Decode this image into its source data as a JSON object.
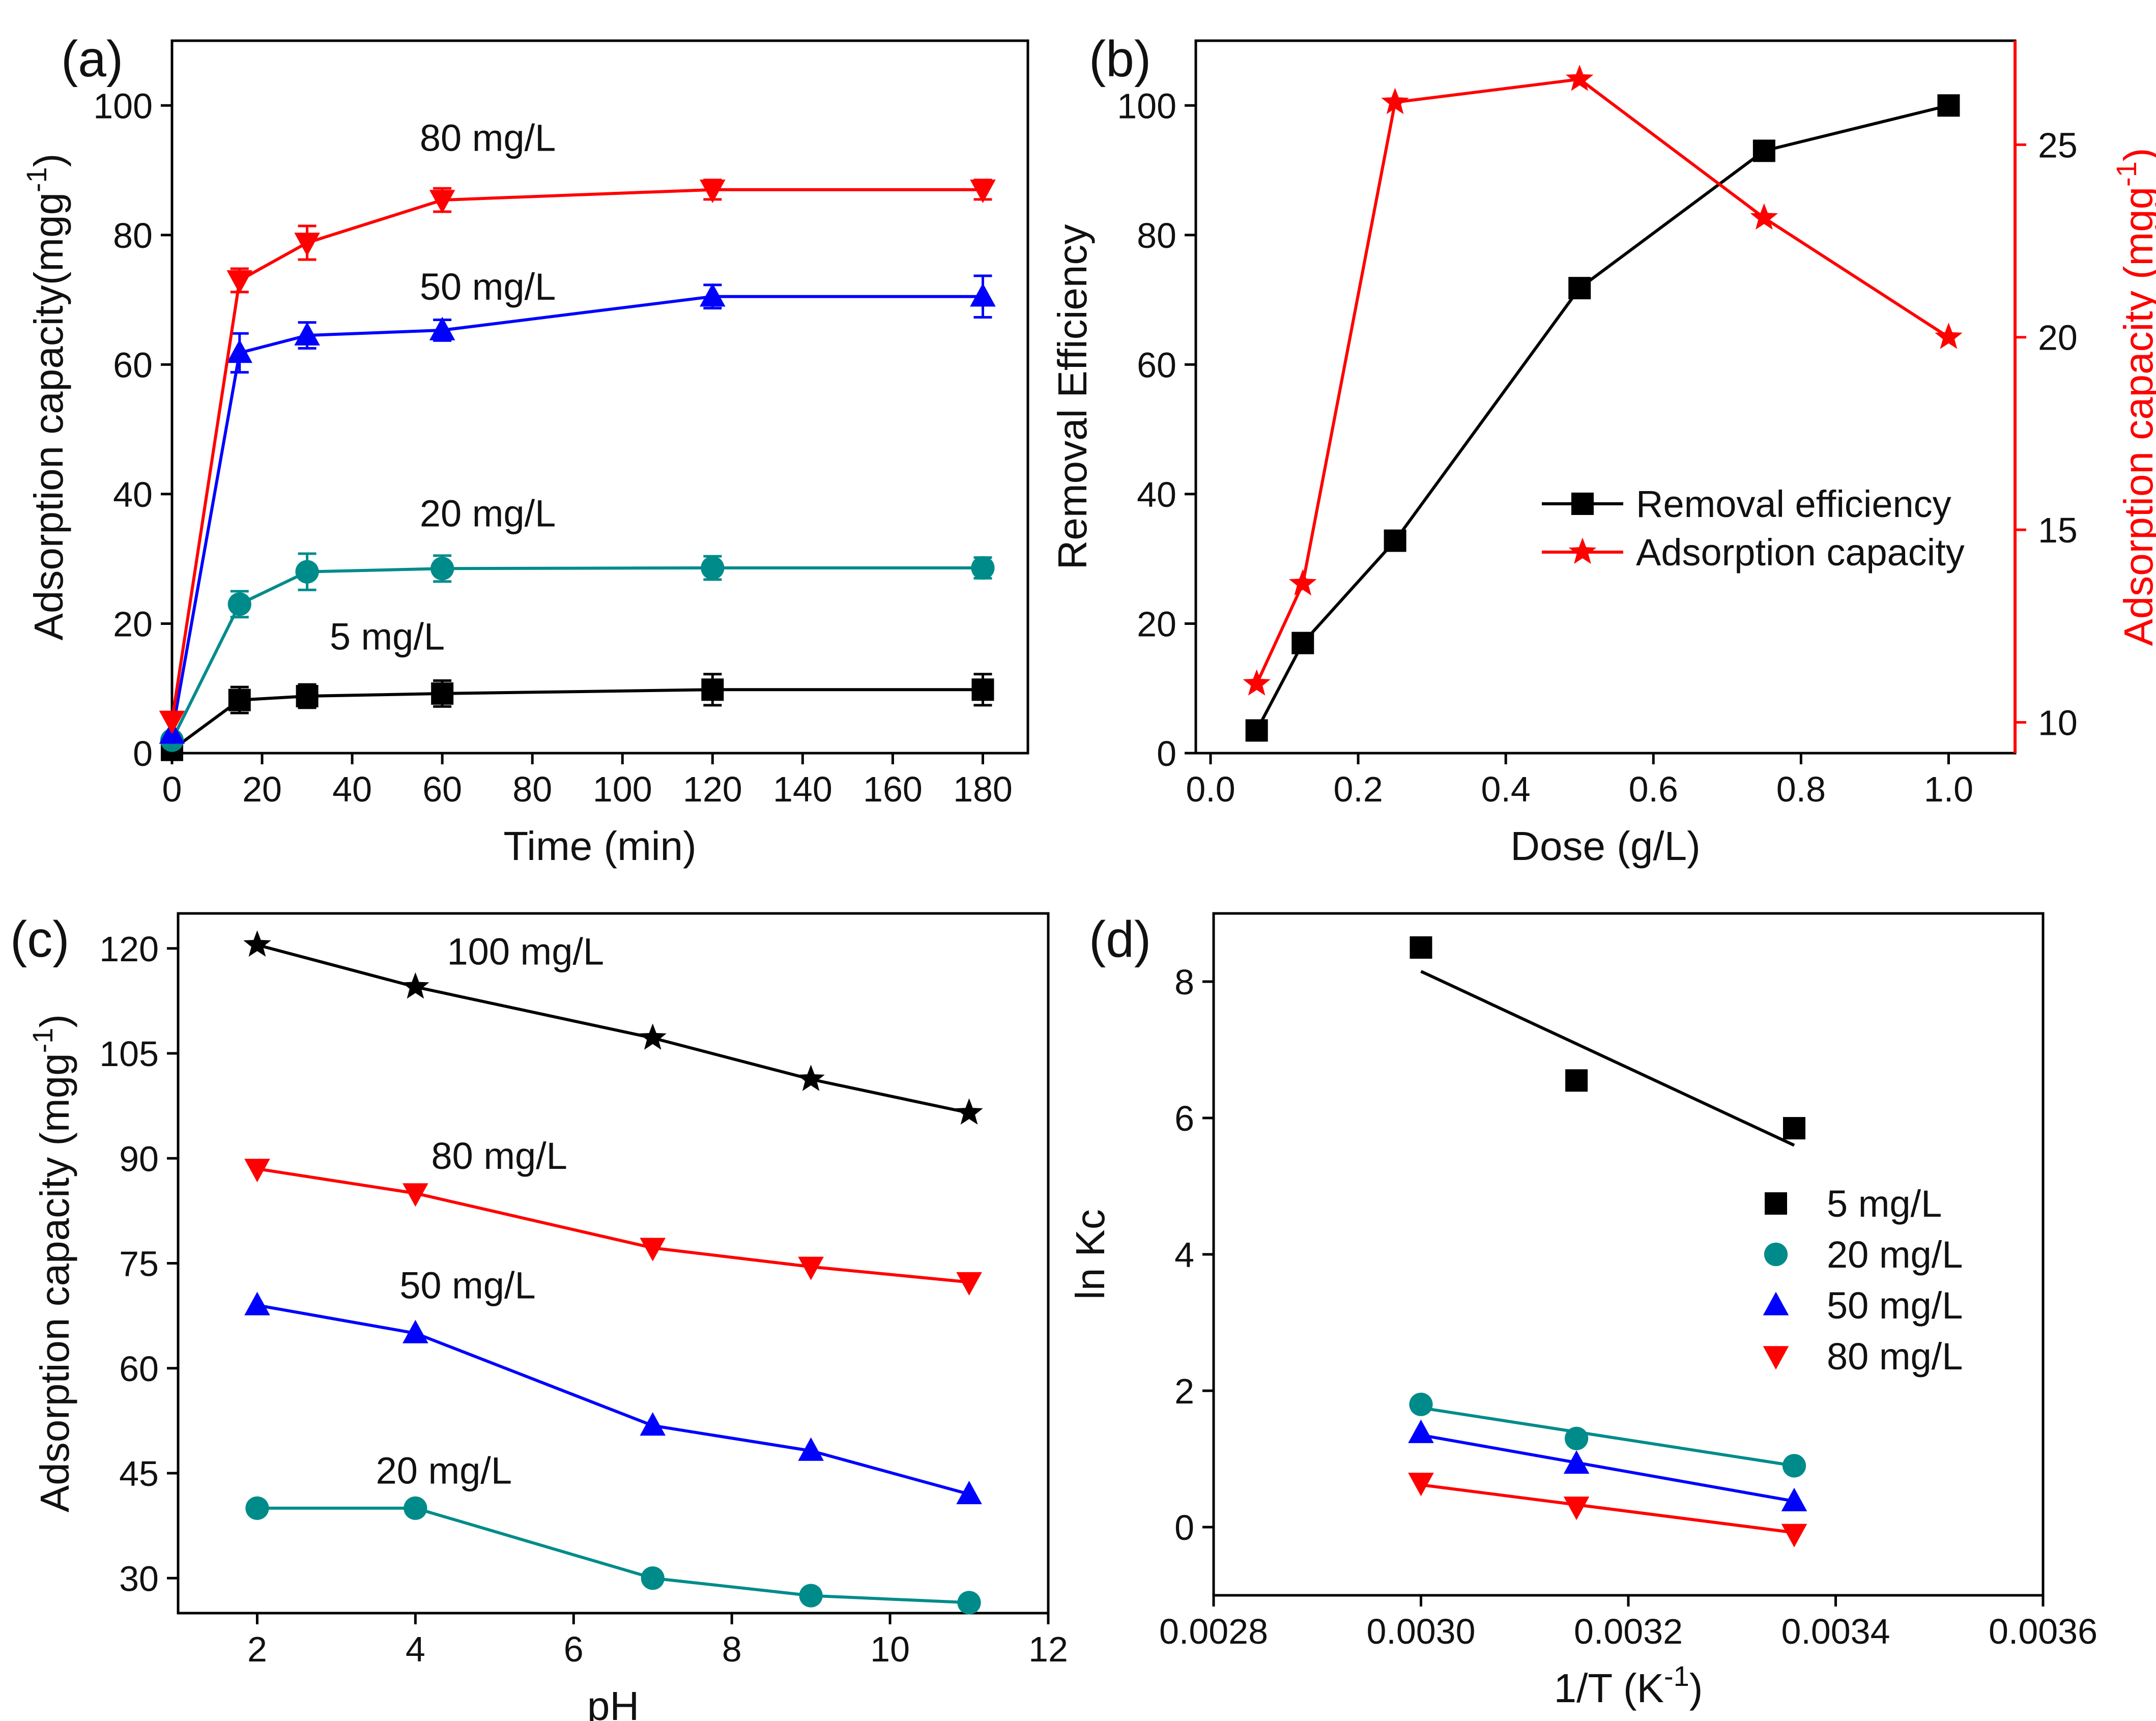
{
  "chart_data": [
    {
      "id": "a",
      "panel_label": "(a)",
      "type": "line",
      "xlabel": "Time (min)",
      "ylabel": "Adsorption capacity(mgg",
      "ylabel_sup": "-1",
      "ylabel_close": ")",
      "xlim": [
        0,
        190
      ],
      "ylim": [
        0,
        110
      ],
      "xticks": [
        0,
        20,
        40,
        60,
        80,
        100,
        120,
        140,
        160,
        180
      ],
      "yticks": [
        0,
        20,
        40,
        60,
        80,
        100
      ],
      "x": [
        0,
        15,
        30,
        60,
        120,
        180
      ],
      "series": [
        {
          "name": "5 mg/L",
          "color": "#000000",
          "marker": "square",
          "values": [
            0.5,
            8.2,
            8.8,
            9.2,
            9.8,
            9.8
          ],
          "errors": [
            0,
            2.0,
            1.8,
            2.0,
            2.4,
            2.4
          ],
          "label_pos": [
            35,
            16
          ]
        },
        {
          "name": "20 mg/L",
          "color": "#008B8B",
          "marker": "circle",
          "values": [
            2,
            23,
            28,
            28.5,
            28.6,
            28.6
          ],
          "errors": [
            0,
            2.0,
            2.8,
            2.0,
            1.8,
            1.6
          ],
          "label_pos": [
            55,
            35
          ]
        },
        {
          "name": "50 mg/L",
          "color": "#0000FF",
          "marker": "triangle-up",
          "values": [
            3,
            61.8,
            64.5,
            65.3,
            70.5,
            70.5
          ],
          "errors": [
            0,
            3.0,
            2.0,
            1.6,
            1.8,
            3.2
          ],
          "label_pos": [
            55,
            70
          ]
        },
        {
          "name": "80 mg/L",
          "color": "#FF0000",
          "marker": "triangle-down",
          "values": [
            5,
            73,
            78.8,
            85.4,
            87,
            87
          ],
          "errors": [
            0,
            1.8,
            2.6,
            1.8,
            1.5,
            1.5
          ],
          "label_pos": [
            55,
            93
          ]
        }
      ]
    },
    {
      "id": "b",
      "panel_label": "(b)",
      "type": "line",
      "xlabel": "Dose (g/L)",
      "ylabel": "Removal Efficiency",
      "y2label": "Adsorption capacity (mgg",
      "y2label_sup": "-1",
      "y2label_close": ")",
      "xlim": [
        -0.02,
        1.09
      ],
      "ylim": [
        0,
        110
      ],
      "y2lim": [
        9.2,
        27.7
      ],
      "xticks": [
        "0.0",
        "0.2",
        "0.4",
        "0.6",
        "0.8",
        "1.0"
      ],
      "yticks": [
        0,
        20,
        40,
        60,
        80,
        100
      ],
      "y2ticks": [
        10,
        15,
        20,
        25
      ],
      "x": [
        0.0625,
        0.125,
        0.25,
        0.5,
        0.75,
        1.0
      ],
      "series": [
        {
          "name": "Removal efficiency",
          "axis": "left",
          "color": "#000000",
          "marker": "square",
          "values": [
            3.5,
            17,
            32.8,
            71.8,
            93,
            100
          ]
        },
        {
          "name": "Adsorption capacity",
          "axis": "right",
          "color": "#FF0000",
          "marker": "star",
          "values": [
            11,
            13.6,
            26.1,
            26.7,
            23.1,
            20
          ]
        }
      ]
    },
    {
      "id": "c",
      "panel_label": "(c)",
      "type": "line",
      "xlabel": "pH",
      "ylabel": "Adsorption capacity (mgg",
      "ylabel_sup": "-1",
      "ylabel_close": ")",
      "xlim": [
        1,
        12
      ],
      "ylim": [
        25,
        125
      ],
      "xticks": [
        2,
        4,
        6,
        8,
        10,
        12
      ],
      "yticks": [
        30,
        45,
        60,
        75,
        90,
        105,
        120
      ],
      "x": [
        2,
        4,
        7,
        9,
        11
      ],
      "series": [
        {
          "name": "20 mg/L",
          "color": "#008B8B",
          "marker": "circle",
          "values": [
            40,
            40,
            30,
            27.5,
            26.5
          ],
          "label_pos": [
            3.5,
            43.5
          ]
        },
        {
          "name": "50 mg/L",
          "color": "#0000FF",
          "marker": "triangle-up",
          "values": [
            69,
            65,
            51.8,
            48.2,
            42
          ],
          "label_pos": [
            3.8,
            70
          ]
        },
        {
          "name": "80 mg/L",
          "color": "#FF0000",
          "marker": "triangle-down",
          "values": [
            88.5,
            85,
            77.2,
            74.5,
            72.3
          ],
          "label_pos": [
            4.2,
            88.5
          ]
        },
        {
          "name": "100 mg/L",
          "color": "#000000",
          "marker": "star",
          "values": [
            120.5,
            114.5,
            107.2,
            101.3,
            96.5
          ],
          "label_pos": [
            4.4,
            117.7
          ]
        }
      ]
    },
    {
      "id": "d",
      "panel_label": "(d)",
      "type": "scatter",
      "xlabel": "1/T (K",
      "xlabel_sup": "-1",
      "xlabel_close": ")",
      "ylabel": "ln Kc",
      "xlim": [
        0.0028,
        0.0036
      ],
      "ylim": [
        -1,
        9
      ],
      "xticks": [
        "0.0028",
        "0.0030",
        "0.0032",
        "0.0034",
        "0.0036"
      ],
      "yticks": [
        0,
        2,
        4,
        6,
        8
      ],
      "x": [
        0.003,
        0.00315,
        0.00336
      ],
      "series": [
        {
          "name": "5 mg/L",
          "color": "#000000",
          "marker": "square",
          "values": [
            8.5,
            6.55,
            5.85
          ],
          "fit": [
            8.15,
            5.6
          ]
        },
        {
          "name": "20 mg/L",
          "color": "#008B8B",
          "marker": "circle",
          "values": [
            1.8,
            1.3,
            0.9
          ],
          "fit": [
            1.75,
            0.9
          ]
        },
        {
          "name": "50 mg/L",
          "color": "#0000FF",
          "marker": "triangle-up",
          "values": [
            1.38,
            0.93,
            0.38
          ],
          "fit": [
            1.35,
            0.38
          ]
        },
        {
          "name": "80 mg/L",
          "color": "#FF0000",
          "marker": "triangle-down",
          "values": [
            0.65,
            0.3,
            -0.1
          ],
          "fit": [
            0.62,
            -0.08
          ]
        }
      ]
    }
  ]
}
